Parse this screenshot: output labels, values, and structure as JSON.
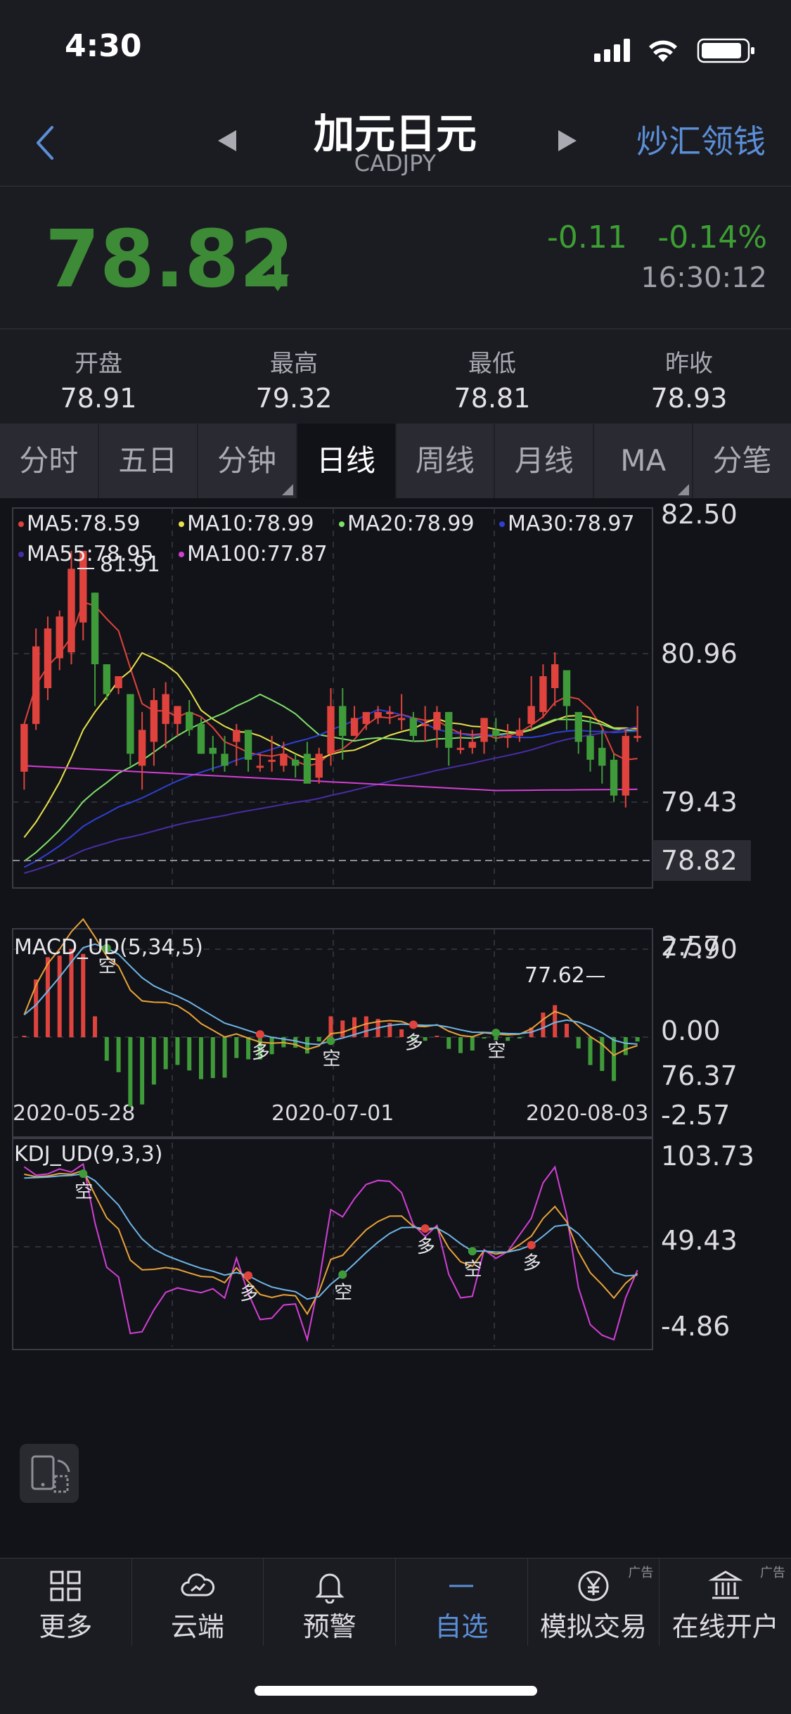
{
  "status": {
    "time": "4:30"
  },
  "nav": {
    "title": "加元日元",
    "subtitle": "CADJPY",
    "right_action": "炒汇领钱"
  },
  "quote": {
    "price": "78.82",
    "change": "-0.11",
    "change_pct": "-0.14%",
    "time": "16:30:12",
    "direction": "down",
    "down_color": "#3d8b36"
  },
  "stats": [
    {
      "label": "开盘",
      "value": "78.91"
    },
    {
      "label": "最高",
      "value": "79.32"
    },
    {
      "label": "最低",
      "value": "78.81"
    },
    {
      "label": "昨收",
      "value": "78.93"
    }
  ],
  "tabs": [
    {
      "label": "分时",
      "active": false,
      "dropdown": false
    },
    {
      "label": "五日",
      "active": false,
      "dropdown": false
    },
    {
      "label": "分钟",
      "active": false,
      "dropdown": true
    },
    {
      "label": "日线",
      "active": true,
      "dropdown": false
    },
    {
      "label": "周线",
      "active": false,
      "dropdown": false
    },
    {
      "label": "月线",
      "active": false,
      "dropdown": false
    },
    {
      "label": "MA",
      "active": false,
      "dropdown": true
    },
    {
      "label": "分笔",
      "active": false,
      "dropdown": false
    }
  ],
  "ma_legend": [
    {
      "text": "MA5:78.59",
      "color": "#e0433d"
    },
    {
      "text": "MA10:78.99",
      "color": "#e8e24a"
    },
    {
      "text": "MA20:78.99",
      "color": "#7ee06a"
    },
    {
      "text": "MA30:78.97",
      "color": "#2f3fd6"
    },
    {
      "text": "MA55:78.95",
      "color": "#4a2ca8"
    },
    {
      "text": "MA100:77.87",
      "color": "#d23fd6"
    }
  ],
  "chart_data": {
    "type": "candlestick",
    "symbol": "CADJPY",
    "y_ticks": [
      "82.50",
      "80.96",
      "79.43",
      "78.82",
      "77.90",
      "76.37"
    ],
    "ylim": [
      76.37,
      82.5
    ],
    "current_price": 78.82,
    "x_ticks": [
      "2020-05-28",
      "2020-07-01",
      "2020-08-03"
    ],
    "high_label": "81.91",
    "low_label": "77.62",
    "candles_ohlc": [
      [
        78.2,
        78.3,
        79.0,
        79.0,
        77.9
      ],
      [
        79.0,
        79.5,
        80.3,
        80.6,
        78.9
      ],
      [
        79.6,
        80.3,
        80.6,
        80.8,
        79.4
      ],
      [
        80.1,
        80.6,
        80.8,
        80.9,
        79.9
      ],
      [
        80.2,
        81.4,
        81.6,
        81.9,
        80.0
      ],
      [
        80.7,
        81.8,
        81.9,
        81.9,
        80.4
      ],
      [
        81.2,
        80.8,
        80.0,
        81.2,
        79.3
      ],
      [
        80.0,
        79.4,
        79.5,
        80.0,
        79.4
      ],
      [
        79.6,
        79.8,
        79.8,
        79.8,
        79.5
      ],
      [
        79.5,
        78.5,
        78.5,
        79.5,
        78.3
      ],
      [
        78.3,
        78.3,
        78.9,
        79.2,
        77.9
      ],
      [
        78.7,
        79.0,
        79.4,
        79.6,
        78.3
      ],
      [
        79.0,
        79.3,
        79.5,
        79.7,
        78.6
      ],
      [
        79.0,
        79.1,
        79.3,
        79.3,
        78.8
      ],
      [
        79.2,
        79.0,
        78.9,
        79.4,
        78.8
      ],
      [
        79.0,
        78.6,
        78.5,
        79.1,
        78.5
      ],
      [
        78.6,
        78.3,
        78.5,
        78.8,
        78.2
      ],
      [
        78.5,
        78.5,
        78.3,
        78.8,
        78.2
      ],
      [
        78.7,
        79.0,
        78.9,
        79.0,
        78.3
      ],
      [
        78.9,
        78.5,
        78.4,
        78.9,
        78.2
      ],
      [
        78.3,
        78.4,
        78.3,
        78.5,
        78.2
      ],
      [
        78.4,
        78.3,
        78.4,
        78.8,
        78.2
      ],
      [
        78.3,
        78.2,
        78.5,
        78.7,
        78.2
      ],
      [
        78.4,
        78.3,
        78.3,
        78.5,
        78.1
      ],
      [
        78.5,
        78.1,
        78.0,
        78.7,
        78.1
      ],
      [
        78.1,
        78.6,
        78.5,
        78.6,
        78.0
      ],
      [
        78.5,
        79.4,
        79.3,
        79.6,
        78.3
      ],
      [
        79.3,
        78.9,
        78.8,
        79.6,
        78.4
      ],
      [
        78.8,
        79.1,
        79.1,
        79.3,
        78.8
      ],
      [
        79.0,
        79.1,
        79.2,
        79.2,
        78.9
      ],
      [
        79.1,
        79.1,
        79.2,
        79.3,
        79.0
      ],
      [
        79.2,
        79.2,
        79.2,
        79.3,
        79.0
      ],
      [
        79.1,
        79.1,
        79.1,
        79.5,
        78.9
      ],
      [
        79.1,
        79.0,
        78.8,
        79.2,
        78.7
      ],
      [
        79.0,
        78.9,
        79.0,
        79.3,
        78.7
      ],
      [
        78.9,
        79.3,
        79.2,
        79.3,
        78.6
      ],
      [
        79.2,
        78.6,
        78.6,
        79.2,
        78.3
      ],
      [
        78.6,
        78.5,
        78.6,
        78.9,
        78.5
      ],
      [
        78.6,
        78.6,
        78.7,
        78.9,
        78.5
      ],
      [
        78.7,
        78.9,
        79.1,
        79.1,
        78.5
      ],
      [
        78.9,
        79.0,
        78.8,
        79.1,
        78.7
      ],
      [
        78.8,
        78.6,
        78.8,
        79.0,
        78.6
      ],
      [
        78.8,
        79.0,
        78.9,
        79.1,
        78.7
      ],
      [
        79.0,
        79.3,
        79.3,
        79.8,
        78.9
      ],
      [
        79.2,
        79.8,
        79.8,
        80.0,
        79.1
      ],
      [
        79.6,
        80.1,
        80.0,
        80.2,
        79.3
      ],
      [
        79.9,
        79.5,
        79.3,
        79.9,
        78.9
      ],
      [
        79.2,
        79.1,
        78.7,
        79.2,
        78.5
      ],
      [
        78.8,
        78.7,
        78.4,
        79.1,
        78.2
      ],
      [
        78.6,
        78.2,
        78.3,
        78.9,
        78.0
      ],
      [
        78.4,
        78.5,
        77.8,
        78.5,
        77.7
      ],
      [
        77.8,
        78.0,
        78.8,
        78.9,
        77.6
      ],
      [
        78.8,
        78.9,
        78.8,
        79.3,
        78.7
      ]
    ],
    "ma_lines": [
      "MA5",
      "MA10",
      "MA20",
      "MA30",
      "MA55",
      "MA100"
    ],
    "indicators": [
      {
        "name": "MACD_UD(5,34,5)",
        "y_ticks": [
          "2.57",
          "0.00",
          "-2.57"
        ],
        "signals": [
          "空",
          "多",
          "空",
          "多",
          "空"
        ]
      },
      {
        "name": "KDJ_UD(9,3,3)",
        "y_ticks": [
          "103.73",
          "49.43",
          "-4.86"
        ],
        "signals": [
          "空",
          "多",
          "空",
          "多",
          "空",
          "多"
        ]
      }
    ]
  },
  "bottom_nav": [
    {
      "label": "更多",
      "icon": "grid-icon",
      "active": false,
      "ad": ""
    },
    {
      "label": "云端",
      "icon": "cloud-icon",
      "active": false,
      "ad": ""
    },
    {
      "label": "预警",
      "icon": "bell-icon",
      "active": false,
      "ad": ""
    },
    {
      "label": "自选",
      "icon": "minus-icon",
      "active": true,
      "ad": ""
    },
    {
      "label": "模拟交易",
      "icon": "yen-icon",
      "active": false,
      "ad": "广告"
    },
    {
      "label": "在线开户",
      "icon": "bank-icon",
      "active": false,
      "ad": "广告"
    }
  ],
  "colors": {
    "up": "#e0433d",
    "down": "#3f9b39",
    "accent": "#5b8fd8"
  }
}
